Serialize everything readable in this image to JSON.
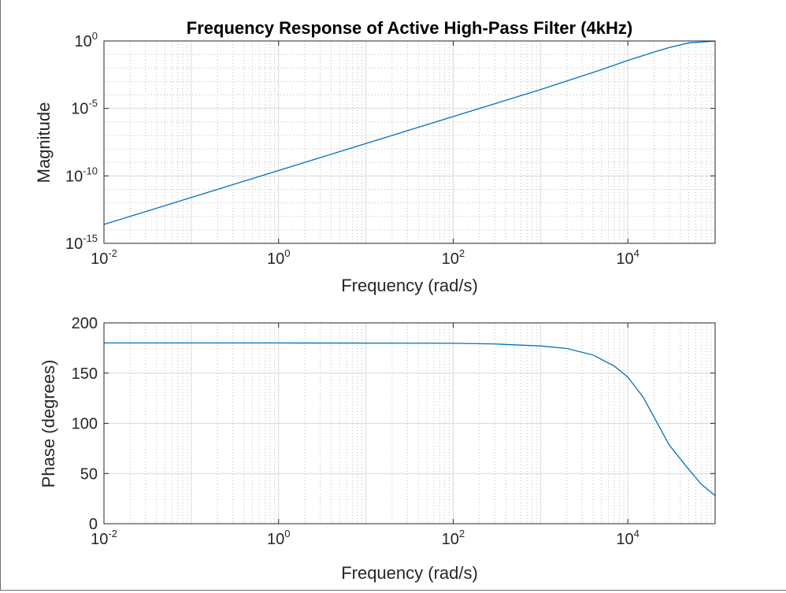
{
  "figure": {
    "title": "Frequency Response of Active High-Pass Filter (4kHz)"
  },
  "colors": {
    "series": "#0072BD",
    "axes": "#262626",
    "grid_major": "#d9d9d9",
    "grid_minor": "#bcbcbc",
    "background": "#ffffff"
  },
  "chart_data": [
    {
      "type": "line",
      "title": "Frequency Response of Active High-Pass Filter (4kHz)",
      "xlabel": "Frequency (rad/s)",
      "ylabel": "Magnitude",
      "xscale": "log",
      "yscale": "log",
      "xlim": [
        0.01,
        100000
      ],
      "ylim": [
        1e-15,
        1
      ],
      "x_ticks": [
        {
          "base": "10",
          "exp": "-2"
        },
        {
          "base": "10",
          "exp": "0"
        },
        {
          "base": "10",
          "exp": "2"
        },
        {
          "base": "10",
          "exp": "4"
        }
      ],
      "x_tick_values": [
        0.01,
        1,
        100,
        10000
      ],
      "y_ticks": [
        {
          "base": "10",
          "exp": "0"
        },
        {
          "base": "10",
          "exp": "-5"
        },
        {
          "base": "10",
          "exp": "-10"
        },
        {
          "base": "10",
          "exp": "-15"
        }
      ],
      "y_tick_values": [
        1,
        1e-05,
        1e-10,
        1e-15
      ],
      "grid": "on (major and minor)",
      "series": [
        {
          "x": [
            0.01,
            0.1,
            1,
            10,
            100,
            1000,
            5000,
            10000,
            20000,
            30000,
            50000,
            100000
          ],
          "y": [
            2.5e-14,
            2.5e-12,
            2.5e-10,
            2.5e-08,
            2.5e-06,
            0.00025,
            0.0075,
            0.036,
            0.15,
            0.33,
            0.72,
            0.97
          ]
        }
      ]
    },
    {
      "type": "line",
      "xlabel": "Frequency (rad/s)",
      "ylabel": "Phase (degrees)",
      "xscale": "log",
      "yscale": "linear",
      "xlim": [
        0.01,
        100000
      ],
      "ylim": [
        0,
        200
      ],
      "x_ticks": [
        {
          "base": "10",
          "exp": "-2"
        },
        {
          "base": "10",
          "exp": "0"
        },
        {
          "base": "10",
          "exp": "2"
        },
        {
          "base": "10",
          "exp": "4"
        }
      ],
      "x_tick_values": [
        0.01,
        1,
        100,
        10000
      ],
      "y_ticks": [
        "0",
        "50",
        "100",
        "150",
        "200"
      ],
      "y_tick_values": [
        0,
        50,
        100,
        150,
        200
      ],
      "grid": "on (major and minor)",
      "series": [
        {
          "x": [
            0.01,
            1,
            100,
            300,
            1000,
            2000,
            4000,
            7000,
            10000,
            15000,
            20000,
            30000,
            50000,
            70000,
            100000
          ],
          "y": [
            180,
            180,
            179.7,
            179,
            177,
            174.5,
            168,
            157,
            146,
            126,
            106,
            78,
            54,
            39,
            28
          ]
        }
      ]
    }
  ]
}
